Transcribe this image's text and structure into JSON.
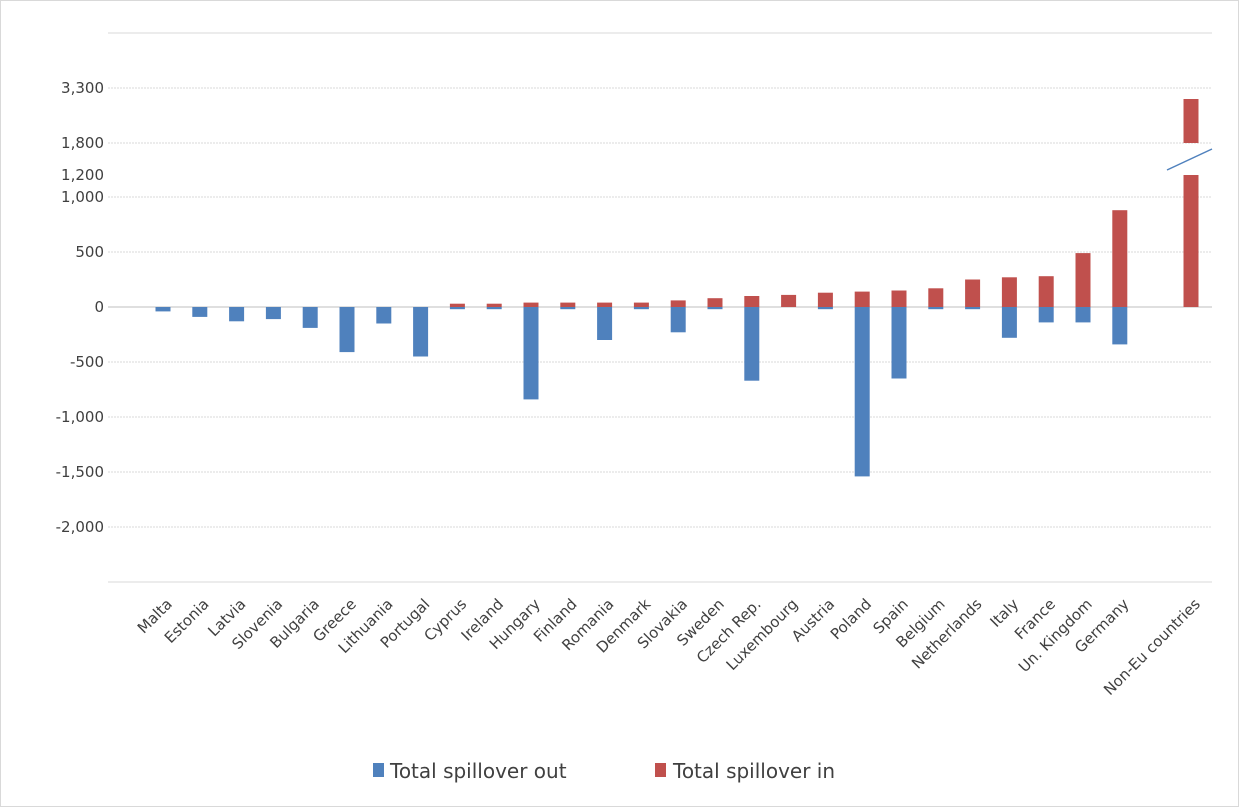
{
  "chart_data": {
    "type": "bar",
    "title": "",
    "xlabel": "",
    "ylabel": "",
    "categories": [
      "Malta",
      "Estonia",
      "Latvia",
      "Slovenia",
      "Bulgaria",
      "Greece",
      "Lithuania",
      "Portugal",
      "Cyprus",
      "Ireland",
      "Hungary",
      "Finland",
      "Romania",
      "Denmark",
      "Slovakia",
      "Sweden",
      "Czech Rep.",
      "Luxembourg",
      "Austria",
      "Poland",
      "Spain",
      "Belgium",
      "Netherlands",
      "Italy",
      "France",
      "Un. Kingdom",
      "Germany",
      "Non-Eu countries"
    ],
    "series": [
      {
        "name": "Total spillover out",
        "color": "#4f81bd",
        "values": [
          -40,
          -90,
          -130,
          -110,
          -190,
          -410,
          -150,
          -450,
          -20,
          -20,
          -840,
          -20,
          -300,
          -20,
          -230,
          -20,
          -670,
          0,
          -20,
          -1540,
          -650,
          -20,
          -20,
          -280,
          -140,
          -140,
          -340,
          0
        ]
      },
      {
        "name": "Total spillover in",
        "color": "#c0504d",
        "values": [
          0,
          0,
          0,
          0,
          0,
          0,
          0,
          0,
          30,
          30,
          40,
          40,
          40,
          40,
          60,
          80,
          100,
          110,
          130,
          140,
          150,
          170,
          250,
          270,
          280,
          490,
          880,
          3000
        ]
      }
    ],
    "y_ticks": [
      "3,300",
      "1,800",
      "1,200",
      "1,000",
      "500",
      "0",
      "-500",
      "-1,000",
      "-1,500",
      "-2,000"
    ],
    "ylim": [
      -2500,
      3800
    ],
    "axis_break": {
      "from": 1200,
      "to": 1800
    },
    "grid": true,
    "legend": {
      "position": "bottom",
      "items": [
        "Total spillover out",
        "Total spillover in"
      ]
    }
  }
}
